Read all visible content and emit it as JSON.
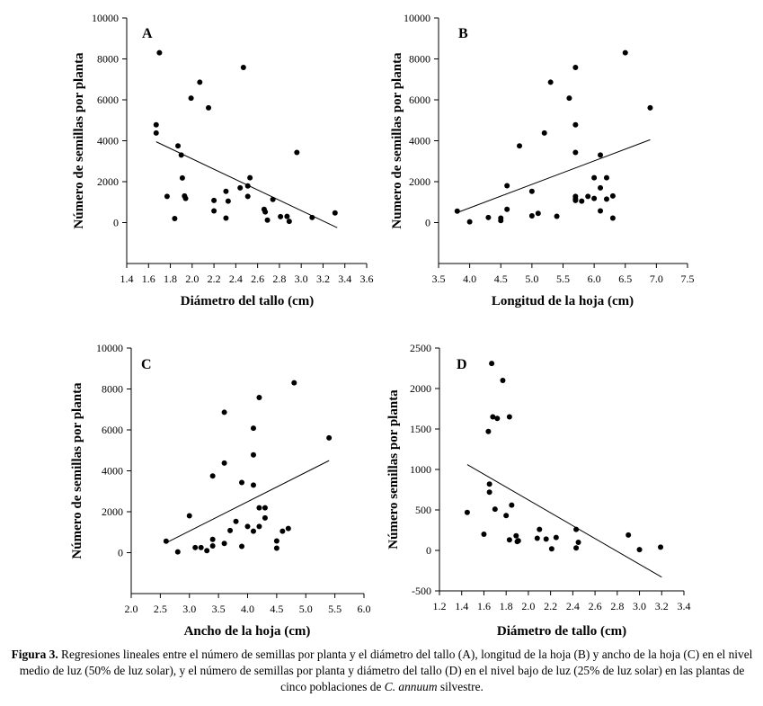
{
  "caption": {
    "label": "Figura 3.",
    "text_before": " Regresiones lineales entre el número de semillas por planta y el diámetro del tallo (A), longitud de la hoja (B) y ancho de la hoja (C) en el nivel medio de luz (50% de luz solar), y el número de semillas por planta y diámetro del tallo (D) en el nivel bajo de luz (25% de luz solar) en las plantas de cinco poblaciones de ",
    "species": "C. annuum",
    "text_after": " silvestre."
  },
  "chart_data": [
    {
      "id": "A",
      "type": "scatter",
      "panel_label": "A",
      "xlabel": "Diámetro del tallo (cm)",
      "ylabel": "Número de semillas por planta",
      "xlim": [
        1.4,
        3.6
      ],
      "ylim": [
        -2000,
        10000
      ],
      "xticks": [
        1.4,
        1.6,
        1.8,
        2.0,
        2.2,
        2.4,
        2.6,
        2.8,
        3.0,
        3.2,
        3.4,
        3.6
      ],
      "yticks": [
        0,
        2000,
        4000,
        6000,
        8000,
        10000
      ],
      "xtick_labels": [
        "1.4",
        "1.6",
        "1.8",
        "2.0",
        "2.2",
        "2.4",
        "2.6",
        "2.8",
        "3.0",
        "3.2",
        "3.4",
        "3.6"
      ],
      "ytick_labels": [
        "0",
        "2000",
        "4000",
        "6000",
        "8000",
        "10000"
      ],
      "points": [
        [
          1.67,
          4780
        ],
        [
          1.67,
          4380
        ],
        [
          1.7,
          8300
        ],
        [
          1.77,
          1280
        ],
        [
          1.84,
          200
        ],
        [
          1.87,
          3750
        ],
        [
          1.9,
          3300
        ],
        [
          1.91,
          2180
        ],
        [
          1.93,
          1300
        ],
        [
          1.94,
          1180
        ],
        [
          1.99,
          6080
        ],
        [
          2.07,
          6860
        ],
        [
          2.15,
          5610
        ],
        [
          2.2,
          1080
        ],
        [
          2.2,
          570
        ],
        [
          2.31,
          1530
        ],
        [
          2.31,
          220
        ],
        [
          2.33,
          1050
        ],
        [
          2.44,
          1700
        ],
        [
          2.47,
          7580
        ],
        [
          2.51,
          1280
        ],
        [
          2.51,
          1790
        ],
        [
          2.53,
          2190
        ],
        [
          2.66,
          650
        ],
        [
          2.67,
          520
        ],
        [
          2.69,
          120
        ],
        [
          2.74,
          1130
        ],
        [
          2.81,
          290
        ],
        [
          2.87,
          300
        ],
        [
          2.89,
          60
        ],
        [
          2.96,
          3430
        ],
        [
          3.1,
          250
        ],
        [
          3.31,
          470
        ]
      ],
      "regression": [
        [
          1.67,
          3950
        ],
        [
          3.33,
          -250
        ]
      ]
    },
    {
      "id": "B",
      "type": "scatter",
      "panel_label": "B",
      "xlabel": "Longitud de la hoja (cm)",
      "ylabel": "Numero de semillas por planta",
      "xlim": [
        3.5,
        7.5
      ],
      "ylim": [
        -2000,
        10000
      ],
      "xticks": [
        3.5,
        4.0,
        4.5,
        5.0,
        5.5,
        6.0,
        6.5,
        7.0,
        7.5
      ],
      "yticks": [
        0,
        2000,
        4000,
        6000,
        8000,
        10000
      ],
      "xtick_labels": [
        "3.5",
        "4.0",
        "4.5",
        "5.0",
        "5.5",
        "6.0",
        "6.5",
        "7.0",
        "7.5"
      ],
      "ytick_labels": [
        "0",
        "2000",
        "4000",
        "6000",
        "8000",
        "10000"
      ],
      "points": [
        [
          3.8,
          560
        ],
        [
          4.0,
          40
        ],
        [
          4.3,
          250
        ],
        [
          4.5,
          220
        ],
        [
          4.5,
          100
        ],
        [
          4.6,
          1800
        ],
        [
          4.6,
          650
        ],
        [
          4.8,
          3750
        ],
        [
          5.0,
          1530
        ],
        [
          5.0,
          330
        ],
        [
          5.1,
          450
        ],
        [
          5.2,
          4380
        ],
        [
          5.3,
          6860
        ],
        [
          5.4,
          310
        ],
        [
          5.6,
          6080
        ],
        [
          5.7,
          7580
        ],
        [
          5.7,
          4780
        ],
        [
          5.7,
          3430
        ],
        [
          5.7,
          1280
        ],
        [
          5.7,
          1160
        ],
        [
          5.7,
          1080
        ],
        [
          5.8,
          1050
        ],
        [
          5.9,
          1280
        ],
        [
          6.0,
          2190
        ],
        [
          6.0,
          1180
        ],
        [
          6.1,
          3300
        ],
        [
          6.1,
          1700
        ],
        [
          6.1,
          570
        ],
        [
          6.2,
          2190
        ],
        [
          6.2,
          1150
        ],
        [
          6.3,
          1300
        ],
        [
          6.3,
          220
        ],
        [
          6.5,
          8300
        ],
        [
          6.9,
          5610
        ]
      ],
      "regression": [
        [
          3.8,
          490
        ],
        [
          6.9,
          4050
        ]
      ]
    },
    {
      "id": "C",
      "type": "scatter",
      "panel_label": "C",
      "xlabel": "Ancho de la hoja (cm)",
      "ylabel": "Número de semillas por planta",
      "xlim": [
        2.0,
        6.0
      ],
      "ylim": [
        -2000,
        10000
      ],
      "xticks": [
        2.0,
        2.5,
        3.0,
        3.5,
        4.0,
        4.5,
        5.0,
        5.5,
        6.0
      ],
      "yticks": [
        0,
        2000,
        4000,
        6000,
        8000,
        10000
      ],
      "xtick_labels": [
        "2.0",
        "2.5",
        "3.0",
        "3.5",
        "4.0",
        "4.5",
        "5.0",
        "5.5",
        "6.0"
      ],
      "ytick_labels": [
        "0",
        "2000",
        "4000",
        "6000",
        "8000",
        "10000"
      ],
      "points": [
        [
          2.6,
          560
        ],
        [
          2.8,
          40
        ],
        [
          3.0,
          1800
        ],
        [
          3.1,
          250
        ],
        [
          3.2,
          250
        ],
        [
          3.3,
          100
        ],
        [
          3.4,
          3750
        ],
        [
          3.4,
          650
        ],
        [
          3.4,
          330
        ],
        [
          3.6,
          6860
        ],
        [
          3.6,
          4380
        ],
        [
          3.6,
          450
        ],
        [
          3.7,
          1080
        ],
        [
          3.8,
          1530
        ],
        [
          3.9,
          3430
        ],
        [
          3.9,
          310
        ],
        [
          4.0,
          1280
        ],
        [
          4.1,
          6080
        ],
        [
          4.1,
          4780
        ],
        [
          4.1,
          3300
        ],
        [
          4.1,
          1050
        ],
        [
          4.2,
          7580
        ],
        [
          4.2,
          2190
        ],
        [
          4.2,
          1280
        ],
        [
          4.3,
          2190
        ],
        [
          4.3,
          1700
        ],
        [
          4.5,
          570
        ],
        [
          4.5,
          220
        ],
        [
          4.6,
          1050
        ],
        [
          4.7,
          1180
        ],
        [
          4.8,
          8300
        ],
        [
          5.4,
          5610
        ]
      ],
      "regression": [
        [
          2.6,
          480
        ],
        [
          5.4,
          4500
        ]
      ]
    },
    {
      "id": "D",
      "type": "scatter",
      "panel_label": "D",
      "xlabel": "Diámetro de tallo (cm)",
      "ylabel": "Número semillas por planta",
      "xlim": [
        1.2,
        3.4
      ],
      "ylim": [
        -500,
        2500
      ],
      "xticks": [
        1.2,
        1.4,
        1.6,
        1.8,
        2.0,
        2.2,
        2.4,
        2.6,
        2.8,
        3.0,
        3.2,
        3.4
      ],
      "yticks": [
        -500,
        0,
        500,
        1000,
        1500,
        2000,
        2500
      ],
      "xtick_labels": [
        "1.2",
        "1.4",
        "1.6",
        "1.8",
        "2.0",
        "2.2",
        "2.4",
        "2.6",
        "2.8",
        "3.0",
        "3.2",
        "3.4"
      ],
      "ytick_labels": [
        "-500",
        "0",
        "500",
        "1000",
        "1500",
        "2000",
        "2500"
      ],
      "points": [
        [
          1.45,
          470
        ],
        [
          1.6,
          200
        ],
        [
          1.64,
          1470
        ],
        [
          1.65,
          820
        ],
        [
          1.65,
          720
        ],
        [
          1.67,
          2310
        ],
        [
          1.68,
          1650
        ],
        [
          1.7,
          510
        ],
        [
          1.72,
          1630
        ],
        [
          1.77,
          2100
        ],
        [
          1.8,
          430
        ],
        [
          1.83,
          1650
        ],
        [
          1.83,
          130
        ],
        [
          1.85,
          560
        ],
        [
          1.89,
          180
        ],
        [
          1.9,
          110
        ],
        [
          1.91,
          120
        ],
        [
          2.08,
          150
        ],
        [
          2.1,
          260
        ],
        [
          2.16,
          140
        ],
        [
          2.21,
          20
        ],
        [
          2.25,
          160
        ],
        [
          2.43,
          260
        ],
        [
          2.43,
          30
        ],
        [
          2.45,
          100
        ],
        [
          2.9,
          190
        ],
        [
          3.0,
          10
        ],
        [
          3.19,
          40
        ]
      ],
      "regression": [
        [
          1.45,
          1060
        ],
        [
          3.2,
          -330
        ]
      ]
    }
  ]
}
